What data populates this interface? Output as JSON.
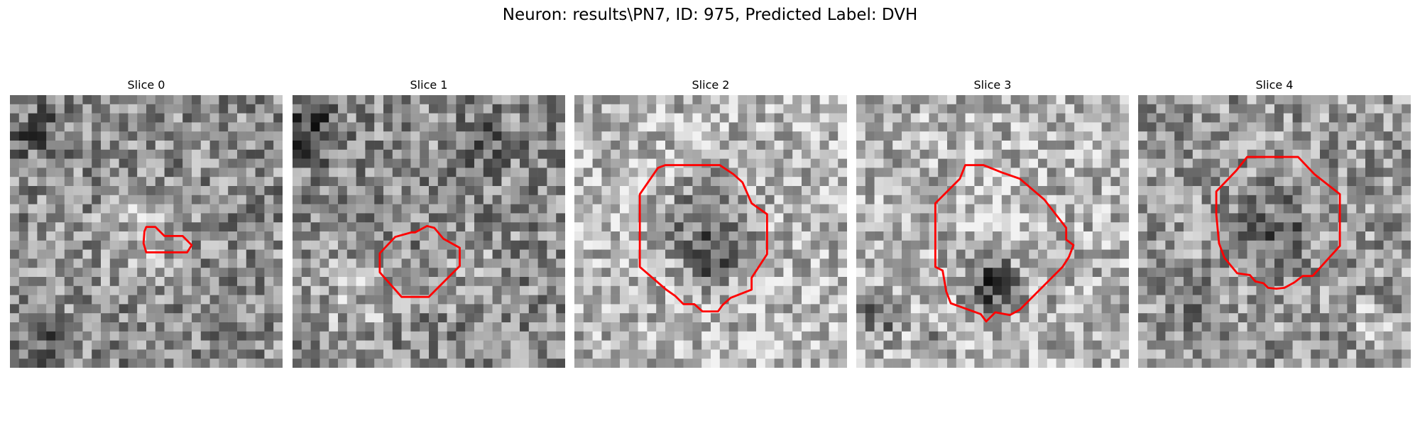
{
  "figure": {
    "title": "Neuron: results\\PN7, ID: 975, Predicted Label: DVH"
  },
  "panels": [
    {
      "title": "Slice 0"
    },
    {
      "title": "Slice 1"
    },
    {
      "title": "Slice 2"
    },
    {
      "title": "Slice 3"
    },
    {
      "title": "Slice 4"
    }
  ],
  "colors": {
    "contour": "#ff0000",
    "background": "#ffffff"
  }
}
